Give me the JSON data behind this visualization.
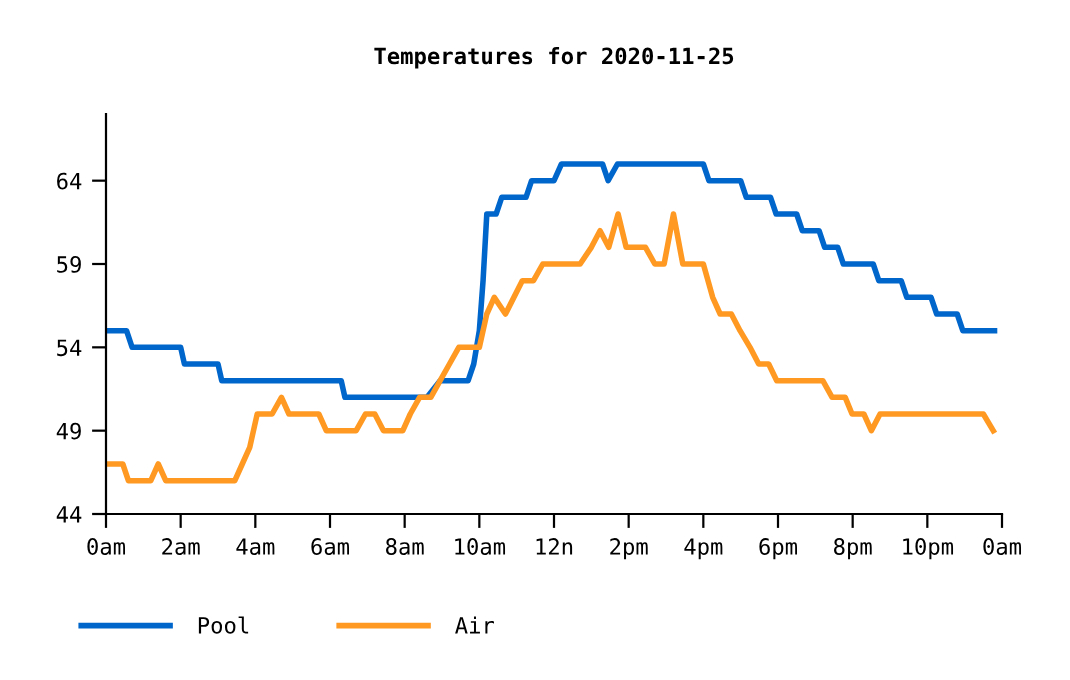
{
  "chart_data": {
    "type": "line",
    "title": "Temperatures for 2020-11-25",
    "xlim": [
      "2020-11-25T00:00",
      "2020-11-26T00:00"
    ],
    "xticks": [
      {
        "value": "2020-11-25T00:00",
        "label": "0am"
      },
      {
        "value": "2020-11-25T02:00",
        "label": "2am"
      },
      {
        "value": "2020-11-25T04:00",
        "label": "4am"
      },
      {
        "value": "2020-11-25T06:00",
        "label": "6am"
      },
      {
        "value": "2020-11-25T08:00",
        "label": "8am"
      },
      {
        "value": "2020-11-25T10:00",
        "label": "10am"
      },
      {
        "value": "2020-11-25T12:00",
        "label": "12n"
      },
      {
        "value": "2020-11-25T14:00",
        "label": "2pm"
      },
      {
        "value": "2020-11-25T16:00",
        "label": "4pm"
      },
      {
        "value": "2020-11-25T18:00",
        "label": "6pm"
      },
      {
        "value": "2020-11-25T20:00",
        "label": "8pm"
      },
      {
        "value": "2020-11-25T22:00",
        "label": "10pm"
      },
      {
        "value": "2020-11-26T00:00",
        "label": "0am"
      }
    ],
    "ylim": [
      44,
      68
    ],
    "yticks": [
      44,
      49,
      54,
      59,
      64
    ],
    "grid": false,
    "legend": "bottom",
    "marker": "none",
    "line_style": "solid",
    "series": [
      {
        "name": "Pool",
        "color": "#0066cc",
        "x": [
          "2020-11-25T00:00",
          "2020-11-25T00:33",
          "2020-11-25T00:42",
          "2020-11-25T02:00",
          "2020-11-25T02:06",
          "2020-11-25T03:00",
          "2020-11-25T03:06",
          "2020-11-25T06:18",
          "2020-11-25T06:24",
          "2020-11-25T08:36",
          "2020-11-25T08:57",
          "2020-11-25T09:42",
          "2020-11-25T09:51",
          "2020-11-25T10:00",
          "2020-11-25T10:06",
          "2020-11-25T10:12",
          "2020-11-25T10:27",
          "2020-11-25T10:36",
          "2020-11-25T11:15",
          "2020-11-25T11:24",
          "2020-11-25T12:00",
          "2020-11-25T12:12",
          "2020-11-25T13:18",
          "2020-11-25T13:27",
          "2020-11-25T13:42",
          "2020-11-25T16:00",
          "2020-11-25T16:09",
          "2020-11-25T17:00",
          "2020-11-25T17:09",
          "2020-11-25T17:48",
          "2020-11-25T17:57",
          "2020-11-25T18:30",
          "2020-11-25T18:39",
          "2020-11-25T19:06",
          "2020-11-25T19:15",
          "2020-11-25T19:36",
          "2020-11-25T19:45",
          "2020-11-25T20:33",
          "2020-11-25T20:42",
          "2020-11-25T21:18",
          "2020-11-25T21:27",
          "2020-11-25T22:06",
          "2020-11-25T22:15",
          "2020-11-25T22:48",
          "2020-11-25T22:57",
          "2020-11-25T23:48"
        ],
        "values": [
          55,
          55,
          54,
          54,
          53,
          53,
          52,
          52,
          51,
          51,
          52,
          52,
          53,
          55,
          58,
          62,
          62,
          63,
          63,
          64,
          64,
          65,
          65,
          64,
          65,
          65,
          64,
          64,
          63,
          63,
          62,
          62,
          61,
          61,
          60,
          60,
          59,
          59,
          58,
          58,
          57,
          57,
          56,
          56,
          55,
          55
        ]
      },
      {
        "name": "Air",
        "color": "#ff9922",
        "x": [
          "2020-11-25T00:00",
          "2020-11-25T00:27",
          "2020-11-25T00:36",
          "2020-11-25T01:12",
          "2020-11-25T01:24",
          "2020-11-25T01:36",
          "2020-11-25T03:27",
          "2020-11-25T03:39",
          "2020-11-25T03:51",
          "2020-11-25T04:03",
          "2020-11-25T04:09",
          "2020-11-25T04:27",
          "2020-11-25T04:42",
          "2020-11-25T04:54",
          "2020-11-25T05:42",
          "2020-11-25T05:54",
          "2020-11-25T06:42",
          "2020-11-25T06:57",
          "2020-11-25T07:12",
          "2020-11-25T07:26",
          "2020-11-25T07:57",
          "2020-11-25T08:09",
          "2020-11-25T08:24",
          "2020-11-25T08:42",
          "2020-11-25T08:57",
          "2020-11-25T09:12",
          "2020-11-25T09:27",
          "2020-11-25T10:00",
          "2020-11-25T10:12",
          "2020-11-25T10:24",
          "2020-11-25T10:42",
          "2020-11-25T11:09",
          "2020-11-25T11:27",
          "2020-11-25T11:42",
          "2020-11-25T12:42",
          "2020-11-25T13:00",
          "2020-11-25T13:14",
          "2020-11-25T13:28",
          "2020-11-25T13:43",
          "2020-11-25T13:56",
          "2020-11-25T14:27",
          "2020-11-25T14:42",
          "2020-11-25T14:57",
          "2020-11-25T15:12",
          "2020-11-25T15:27",
          "2020-11-25T16:00",
          "2020-11-25T16:15",
          "2020-11-25T16:27",
          "2020-11-25T16:45",
          "2020-11-25T16:59",
          "2020-11-25T17:15",
          "2020-11-25T17:29",
          "2020-11-25T17:45",
          "2020-11-25T17:58",
          "2020-11-25T19:12",
          "2020-11-25T19:27",
          "2020-11-25T19:48",
          "2020-11-25T19:59",
          "2020-11-25T20:18",
          "2020-11-25T20:30",
          "2020-11-25T20:44",
          "2020-11-25T23:30",
          "2020-11-25T23:46"
        ],
        "values": [
          47,
          47,
          46,
          46,
          47,
          46,
          46,
          47,
          48,
          50,
          50,
          50,
          51,
          50,
          50,
          49,
          49,
          50,
          50,
          49,
          49,
          50,
          51,
          51,
          52,
          53,
          54,
          54,
          56,
          57,
          56,
          58,
          58,
          59,
          59,
          60,
          61,
          60,
          62,
          60,
          60,
          59,
          59,
          62,
          59,
          59,
          57,
          56,
          56,
          55,
          54,
          53,
          53,
          52,
          52,
          51,
          51,
          50,
          50,
          49,
          50,
          50,
          49
        ]
      }
    ]
  }
}
